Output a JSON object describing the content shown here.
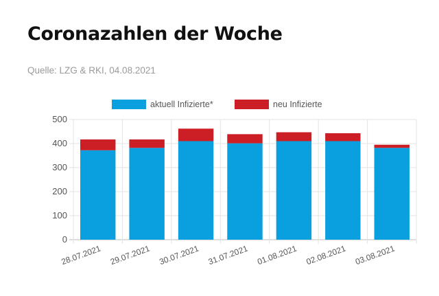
{
  "header": {
    "title": "Coronazahlen der Woche",
    "source": "Quelle: LZG & RKI, 04.08.2021"
  },
  "chart_data": {
    "type": "bar",
    "stacked": true,
    "categories": [
      "28.07.2021",
      "29.07.2021",
      "30.07.2021",
      "31.07.2021",
      "01.08.2021",
      "02.08.2021",
      "03.08.2021"
    ],
    "series": [
      {
        "name": "aktuell Infizierte*",
        "color": "#0aa0e0",
        "values": [
          372,
          382,
          410,
          401,
          410,
          410,
          382
        ]
      },
      {
        "name": "neu Infizierte",
        "color": "#cc1e25",
        "values": [
          45,
          35,
          52,
          38,
          37,
          33,
          13
        ]
      }
    ],
    "ylim": [
      0,
      500
    ],
    "yticks": [
      0,
      100,
      200,
      300,
      400,
      500
    ],
    "grid": true,
    "legend_position": "top",
    "xlabel": "",
    "ylabel": ""
  }
}
